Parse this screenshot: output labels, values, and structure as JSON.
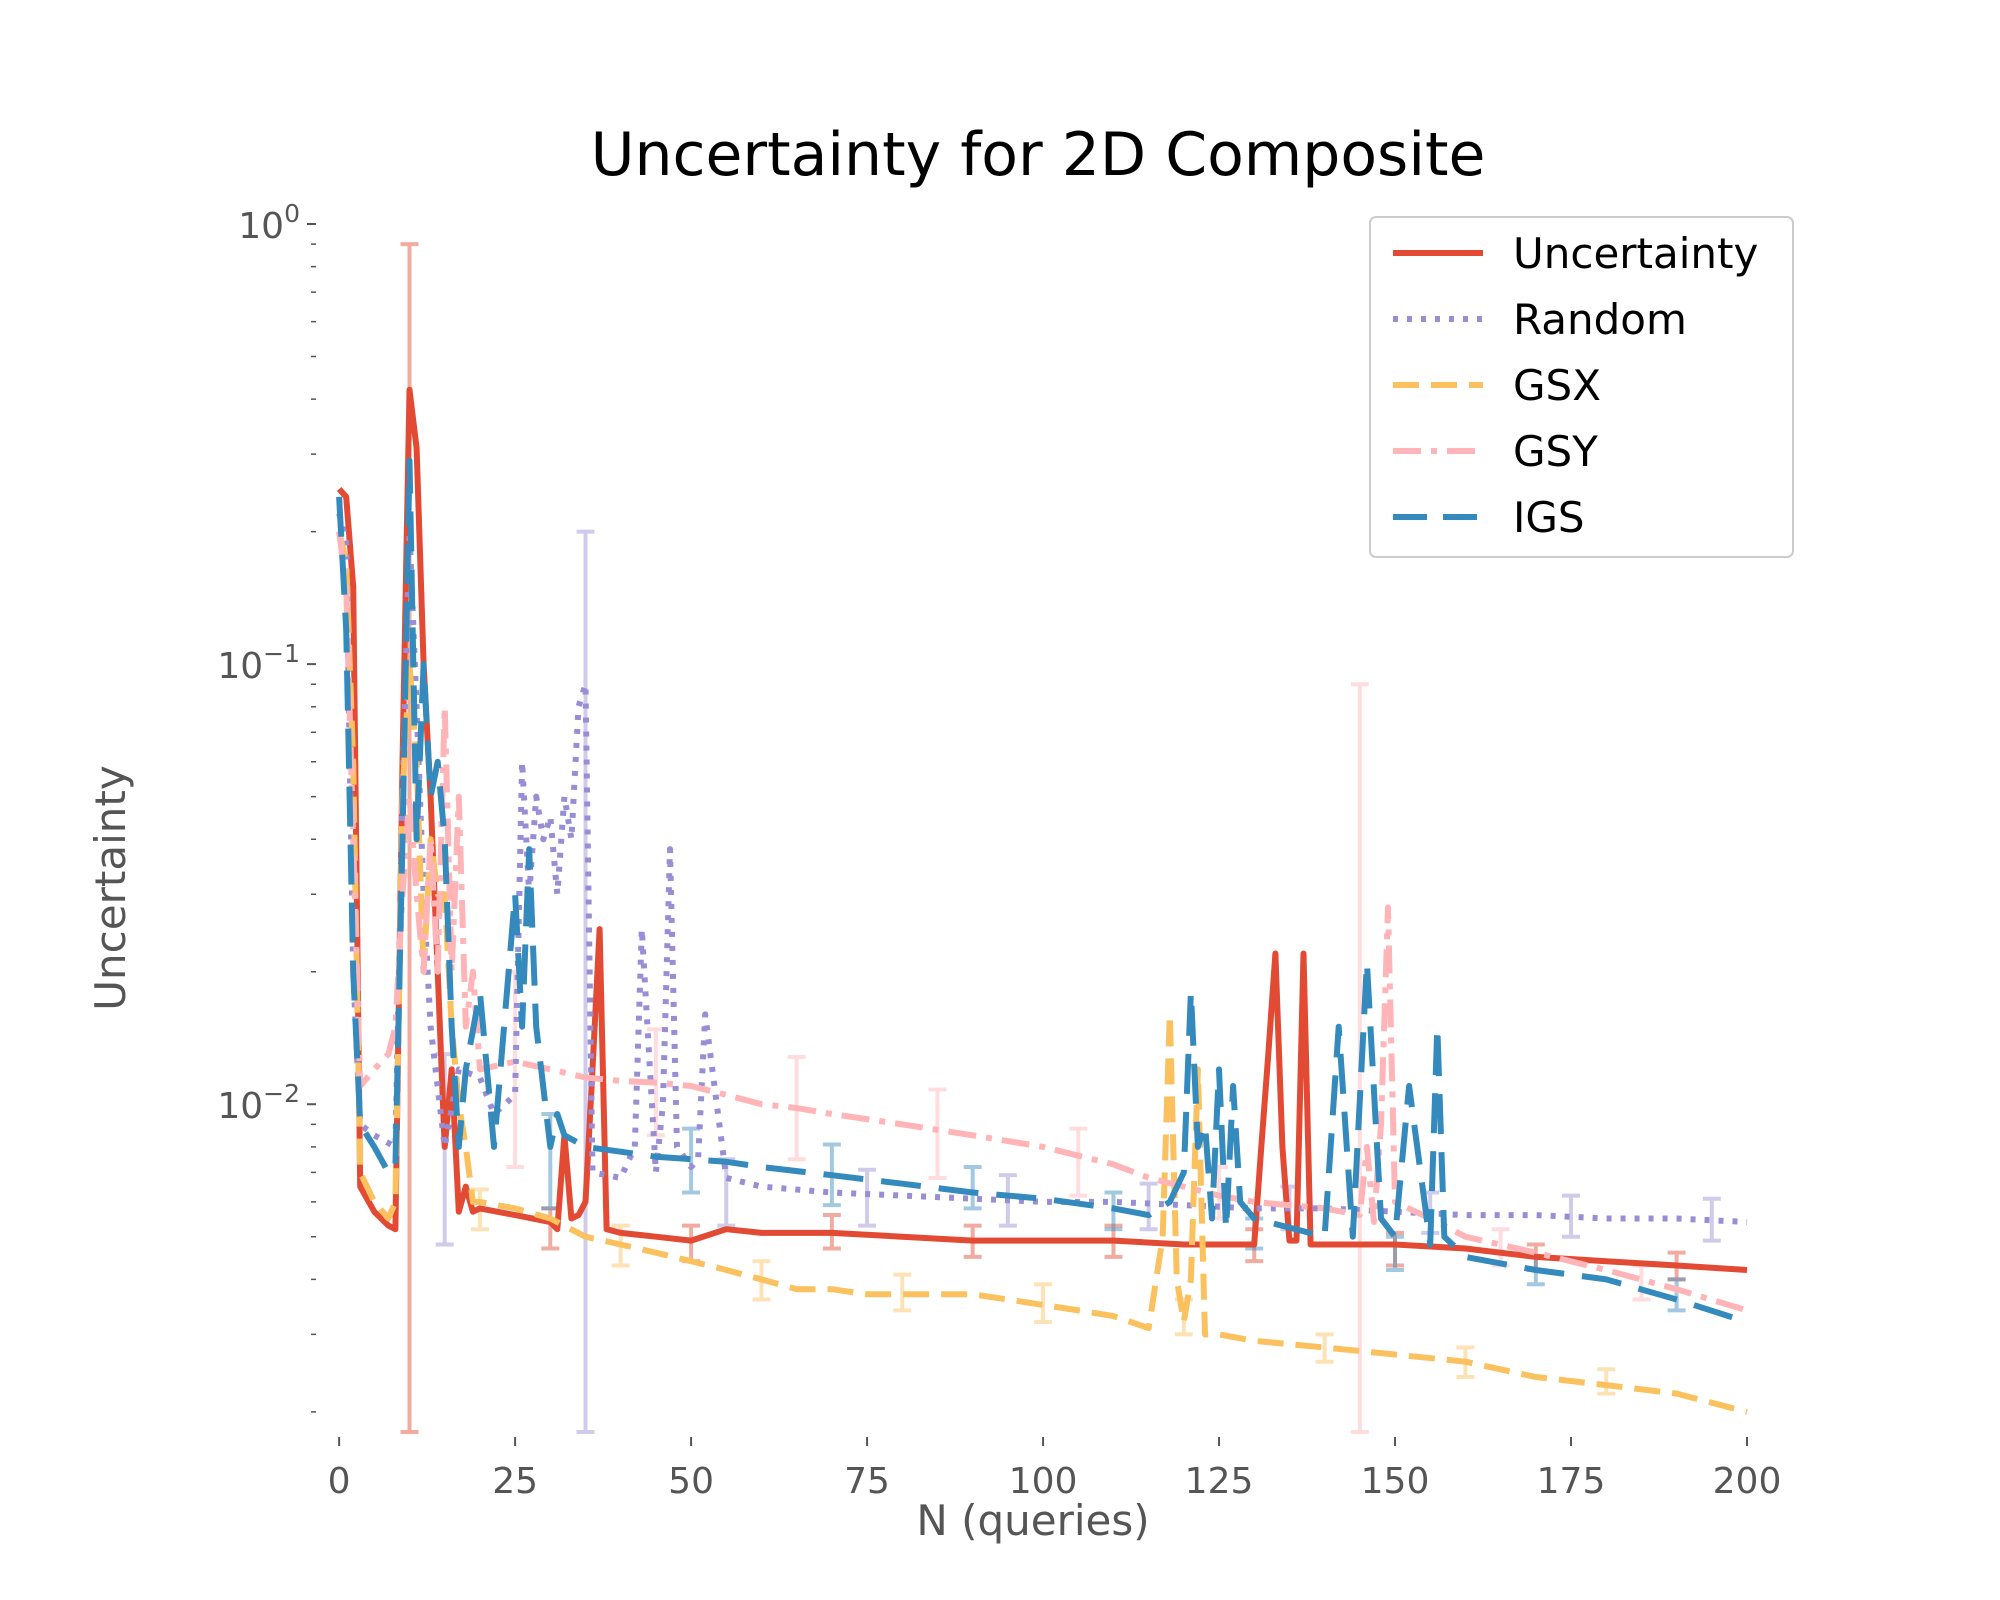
{
  "chart_data": {
    "type": "line",
    "title": "Uncertainty for 2D Composite",
    "xlabel": "N (queries)",
    "ylabel": "Uncertainty",
    "xlim": [
      -3,
      200
    ],
    "ylim": [
      0.0018,
      1.0
    ],
    "yscale": "log",
    "grid": false,
    "legend_position": "top-right",
    "x_ticks": [
      "0",
      "25",
      "50",
      "75",
      "100",
      "125",
      "150",
      "175",
      "200"
    ],
    "y_ticks": [
      {
        "base": "10",
        "exp": "0"
      },
      {
        "base": "10",
        "exp": "−1"
      },
      {
        "base": "10",
        "exp": "−2"
      }
    ],
    "series": [
      {
        "name": "Uncertainty",
        "color": "#E24A33",
        "dash": "solid",
        "width": 6,
        "x": [
          0,
          1,
          2,
          3,
          5,
          7,
          8,
          9,
          10,
          11,
          12,
          13,
          14,
          15,
          16,
          17,
          18,
          19,
          20,
          25,
          30,
          31,
          32,
          33,
          34,
          35,
          36,
          37,
          38,
          40,
          45,
          50,
          55,
          60,
          70,
          80,
          90,
          100,
          110,
          120,
          130,
          131,
          132,
          133,
          134,
          135,
          136,
          137,
          138,
          139,
          140,
          150,
          160,
          170,
          180,
          190,
          200
        ],
        "y": [
          0.25,
          0.24,
          0.15,
          0.0065,
          0.0057,
          0.0053,
          0.0052,
          0.06,
          0.42,
          0.31,
          0.1,
          0.05,
          0.02,
          0.008,
          0.012,
          0.0057,
          0.0065,
          0.0057,
          0.0058,
          0.0056,
          0.0054,
          0.0052,
          0.0085,
          0.0055,
          0.0056,
          0.006,
          0.012,
          0.025,
          0.0052,
          0.0051,
          0.005,
          0.0049,
          0.0052,
          0.0051,
          0.0051,
          0.005,
          0.0049,
          0.0049,
          0.0049,
          0.0048,
          0.0048,
          0.008,
          0.013,
          0.022,
          0.008,
          0.0049,
          0.0049,
          0.022,
          0.0048,
          0.0048,
          0.0048,
          0.0048,
          0.0047,
          0.0045,
          0.0044,
          0.0043,
          0.0042
        ],
        "errorbars": [
          {
            "x": 10,
            "lo": 0.0018,
            "hi": 0.9
          },
          {
            "x": 30,
            "lo": 0.0047,
            "hi": 0.0058
          },
          {
            "x": 50,
            "lo": 0.0044,
            "hi": 0.0053
          },
          {
            "x": 70,
            "lo": 0.0047,
            "hi": 0.0056
          },
          {
            "x": 90,
            "lo": 0.0045,
            "hi": 0.0053
          },
          {
            "x": 110,
            "lo": 0.0045,
            "hi": 0.0053
          },
          {
            "x": 130,
            "lo": 0.0044,
            "hi": 0.0052
          },
          {
            "x": 150,
            "lo": 0.0043,
            "hi": 0.0051
          },
          {
            "x": 170,
            "lo": 0.0042,
            "hi": 0.0048
          },
          {
            "x": 190,
            "lo": 0.004,
            "hi": 0.0046
          }
        ]
      },
      {
        "name": "Random",
        "color": "#988ED5",
        "dash": "dotted",
        "width": 6,
        "x": [
          0,
          1,
          2,
          3,
          5,
          8,
          9,
          10,
          11,
          12,
          13,
          15,
          17,
          20,
          22,
          25,
          26,
          27,
          28,
          29,
          30,
          31,
          32,
          33,
          34,
          35,
          36,
          40,
          42,
          43,
          45,
          46,
          47,
          48,
          50,
          51,
          52,
          55,
          60,
          70,
          80,
          90,
          100,
          110,
          120,
          130,
          140,
          150,
          160,
          170,
          180,
          190,
          200
        ],
        "y": [
          0.22,
          0.19,
          0.02,
          0.009,
          0.0085,
          0.008,
          0.05,
          0.2,
          0.08,
          0.03,
          0.015,
          0.008,
          0.012,
          0.0115,
          0.0095,
          0.0105,
          0.06,
          0.03,
          0.05,
          0.04,
          0.045,
          0.03,
          0.05,
          0.04,
          0.08,
          0.09,
          0.007,
          0.0068,
          0.008,
          0.025,
          0.007,
          0.01,
          0.038,
          0.008,
          0.0072,
          0.0075,
          0.016,
          0.0068,
          0.0065,
          0.0063,
          0.0062,
          0.0061,
          0.006,
          0.006,
          0.0059,
          0.0058,
          0.0058,
          0.0057,
          0.0056,
          0.0056,
          0.0055,
          0.0055,
          0.0054
        ],
        "errorbars": [
          {
            "x": 15,
            "lo": 0.0048,
            "hi": 0.013
          },
          {
            "x": 35,
            "lo": 0.0018,
            "hi": 0.2
          },
          {
            "x": 55,
            "lo": 0.0053,
            "hi": 0.0075
          },
          {
            "x": 75,
            "lo": 0.0053,
            "hi": 0.0071
          },
          {
            "x": 95,
            "lo": 0.0053,
            "hi": 0.0069
          },
          {
            "x": 115,
            "lo": 0.0052,
            "hi": 0.0066
          },
          {
            "x": 135,
            "lo": 0.0052,
            "hi": 0.0065
          },
          {
            "x": 155,
            "lo": 0.0051,
            "hi": 0.0063
          },
          {
            "x": 175,
            "lo": 0.005,
            "hi": 0.0062
          },
          {
            "x": 195,
            "lo": 0.0049,
            "hi": 0.0061
          }
        ]
      },
      {
        "name": "GSX",
        "color": "#FBC15E",
        "dash": "dashed",
        "width": 6,
        "x": [
          0,
          1,
          2,
          3,
          5,
          7,
          8,
          9,
          10,
          11,
          12,
          13,
          14,
          15,
          16,
          17,
          18,
          19,
          20,
          25,
          30,
          35,
          40,
          45,
          50,
          55,
          60,
          65,
          70,
          75,
          80,
          85,
          90,
          95,
          100,
          105,
          110,
          115,
          117,
          118,
          119,
          120,
          121,
          122,
          123,
          125,
          130,
          140,
          150,
          160,
          170,
          180,
          190,
          200
        ],
        "y": [
          0.2,
          0.17,
          0.06,
          0.007,
          0.006,
          0.0055,
          0.006,
          0.05,
          0.1,
          0.06,
          0.02,
          0.04,
          0.03,
          0.03,
          0.015,
          0.01,
          0.008,
          0.006,
          0.006,
          0.0058,
          0.0055,
          0.005,
          0.0048,
          0.0046,
          0.0044,
          0.0042,
          0.004,
          0.0038,
          0.0038,
          0.0037,
          0.0037,
          0.0037,
          0.0037,
          0.0036,
          0.0035,
          0.0034,
          0.0033,
          0.0031,
          0.005,
          0.016,
          0.004,
          0.0032,
          0.004,
          0.012,
          0.003,
          0.003,
          0.0029,
          0.0028,
          0.0027,
          0.0026,
          0.0024,
          0.0023,
          0.0022,
          0.002
        ],
        "errorbars": [
          {
            "x": 20,
            "lo": 0.0052,
            "hi": 0.0064
          },
          {
            "x": 40,
            "lo": 0.0043,
            "hi": 0.0053
          },
          {
            "x": 60,
            "lo": 0.0036,
            "hi": 0.0044
          },
          {
            "x": 80,
            "lo": 0.0034,
            "hi": 0.0041
          },
          {
            "x": 100,
            "lo": 0.0032,
            "hi": 0.0039
          },
          {
            "x": 120,
            "lo": 0.003,
            "hi": 0.0036
          },
          {
            "x": 140,
            "lo": 0.0026,
            "hi": 0.003
          },
          {
            "x": 160,
            "lo": 0.0024,
            "hi": 0.0028
          },
          {
            "x": 180,
            "lo": 0.0022,
            "hi": 0.0025
          }
        ]
      },
      {
        "name": "GSY",
        "color": "#FFB5B8",
        "dash": "dashdot",
        "width": 6,
        "x": [
          0,
          1,
          2,
          3,
          5,
          7,
          8,
          9,
          10,
          11,
          12,
          13,
          14,
          15,
          16,
          17,
          18,
          19,
          20,
          25,
          30,
          35,
          40,
          45,
          50,
          55,
          60,
          65,
          70,
          80,
          90,
          100,
          110,
          115,
          120,
          125,
          130,
          140,
          145,
          146,
          147,
          148,
          149,
          150,
          155,
          160,
          170,
          180,
          190,
          200
        ],
        "y": [
          0.2,
          0.15,
          0.04,
          0.011,
          0.012,
          0.013,
          0.015,
          0.03,
          0.05,
          0.03,
          0.02,
          0.04,
          0.02,
          0.08,
          0.02,
          0.05,
          0.015,
          0.02,
          0.012,
          0.0125,
          0.012,
          0.0115,
          0.0113,
          0.0112,
          0.011,
          0.0105,
          0.01,
          0.0098,
          0.0095,
          0.009,
          0.0085,
          0.008,
          0.0073,
          0.0068,
          0.0065,
          0.0062,
          0.006,
          0.0058,
          0.0056,
          0.008,
          0.0054,
          0.009,
          0.028,
          0.006,
          0.0055,
          0.005,
          0.0046,
          0.0042,
          0.0038,
          0.0034
        ],
        "errorbars": [
          {
            "x": 25,
            "lo": 0.0072,
            "hi": 0.02
          },
          {
            "x": 45,
            "lo": 0.0085,
            "hi": 0.0148
          },
          {
            "x": 65,
            "lo": 0.0075,
            "hi": 0.0128
          },
          {
            "x": 85,
            "lo": 0.0068,
            "hi": 0.0108
          },
          {
            "x": 105,
            "lo": 0.0062,
            "hi": 0.0088
          },
          {
            "x": 125,
            "lo": 0.0055,
            "hi": 0.0072
          },
          {
            "x": 145,
            "lo": 0.0018,
            "hi": 0.09
          },
          {
            "x": 165,
            "lo": 0.0043,
            "hi": 0.0052
          },
          {
            "x": 185,
            "lo": 0.0036,
            "hi": 0.0043
          }
        ]
      },
      {
        "name": "IGS",
        "color": "#348ABD",
        "dash": "longdash",
        "width": 6,
        "x": [
          0,
          1,
          2,
          3,
          5,
          7,
          8,
          9,
          10,
          11,
          12,
          13,
          14,
          15,
          16,
          17,
          18,
          20,
          22,
          25,
          26,
          27,
          28,
          30,
          31,
          32,
          35,
          40,
          45,
          50,
          55,
          60,
          70,
          80,
          90,
          100,
          110,
          115,
          118,
          120,
          121,
          122,
          123,
          124,
          125,
          126,
          127,
          128,
          130,
          140,
          142,
          144,
          146,
          148,
          150,
          152,
          155,
          156,
          157,
          160,
          170,
          180,
          190,
          200
        ],
        "y": [
          0.24,
          0.12,
          0.02,
          0.009,
          0.008,
          0.007,
          0.0072,
          0.04,
          0.29,
          0.04,
          0.1,
          0.05,
          0.06,
          0.04,
          0.015,
          0.008,
          0.012,
          0.018,
          0.008,
          0.03,
          0.015,
          0.038,
          0.015,
          0.008,
          0.0095,
          0.0085,
          0.008,
          0.0078,
          0.0076,
          0.0075,
          0.0074,
          0.0072,
          0.0069,
          0.0066,
          0.0063,
          0.0061,
          0.0058,
          0.0056,
          0.006,
          0.007,
          0.018,
          0.008,
          0.009,
          0.0055,
          0.012,
          0.0052,
          0.011,
          0.006,
          0.0055,
          0.005,
          0.015,
          0.005,
          0.021,
          0.0055,
          0.005,
          0.011,
          0.0048,
          0.015,
          0.005,
          0.0045,
          0.0042,
          0.004,
          0.0036,
          0.0032
        ],
        "errorbars": [
          {
            "x": 30,
            "lo": 0.0058,
            "hi": 0.0095
          },
          {
            "x": 50,
            "lo": 0.0063,
            "hi": 0.0088
          },
          {
            "x": 70,
            "lo": 0.0059,
            "hi": 0.0081
          },
          {
            "x": 90,
            "lo": 0.0058,
            "hi": 0.0072
          },
          {
            "x": 110,
            "lo": 0.0052,
            "hi": 0.0063
          },
          {
            "x": 130,
            "lo": 0.0047,
            "hi": 0.0055
          },
          {
            "x": 150,
            "lo": 0.0042,
            "hi": 0.005
          },
          {
            "x": 170,
            "lo": 0.0039,
            "hi": 0.0045
          },
          {
            "x": 190,
            "lo": 0.0034,
            "hi": 0.004
          }
        ]
      }
    ]
  }
}
